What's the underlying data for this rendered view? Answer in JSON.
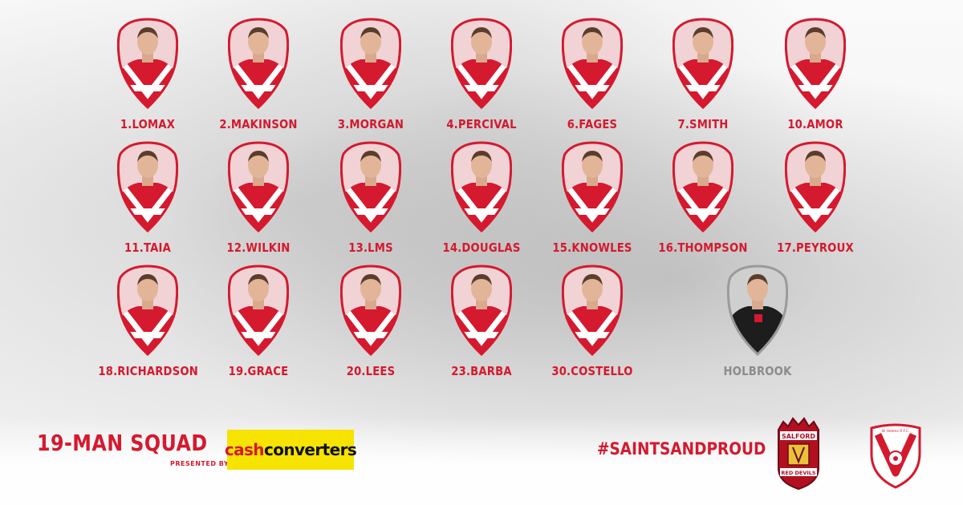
{
  "players": [
    {
      "name": "1.LOMAX"
    },
    {
      "name": "2.MAKINSON"
    },
    {
      "name": "3.MORGAN"
    },
    {
      "name": "4.PERCIVAL"
    },
    {
      "name": "6.FAGES"
    },
    {
      "name": "7.SMITH"
    },
    {
      "name": "10.AMOR"
    },
    {
      "name": "11.TAIA"
    },
    {
      "name": "12.WILKIN"
    },
    {
      "name": "13.LMS"
    },
    {
      "name": "14.DOUGLAS"
    },
    {
      "name": "15.KNOWLES"
    },
    {
      "name": "16.THOMPSON"
    },
    {
      "name": "17.PEYROUX"
    },
    {
      "name": "18.RICHARDSON"
    },
    {
      "name": "19.GRACE"
    },
    {
      "name": "20.LEES"
    },
    {
      "name": "23.BARBA"
    },
    {
      "name": "30.COSTELLO"
    }
  ],
  "coach": {
    "name": "HOLBROOK"
  },
  "footer": {
    "title": "19-MAN SQUAD",
    "presented_by": "PRESENTED BY",
    "sponsor_cash": "cash",
    "sponsor_converters": "converters",
    "hashtag": "#SAINTSANDPROUD"
  },
  "crests": {
    "salford_top": "SALFORD",
    "salford_bottom": "RED DEVILS",
    "saints_name": "St Helens R.F.C."
  },
  "colors": {
    "brand_red": "#d5192e",
    "sponsor_yellow": "#f6e300",
    "coach_grey": "#8c8c8c"
  }
}
